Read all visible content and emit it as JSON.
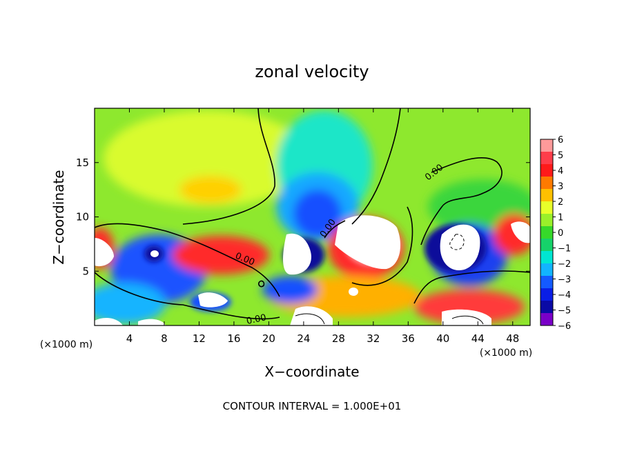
{
  "chart_data": {
    "type": "heatmap",
    "title": "zonal velocity",
    "xlabel": "X−coordinate",
    "ylabel": "Z−coordinate",
    "x_unit_label": "(×1000 m)",
    "y_unit_label": "(×1000 m)",
    "xlim": [
      0,
      50
    ],
    "ylim": [
      0,
      20
    ],
    "x_ticks": [
      4,
      8,
      12,
      16,
      20,
      24,
      28,
      32,
      36,
      40,
      44,
      48
    ],
    "y_ticks": [
      5,
      10,
      15
    ],
    "contour_label": "0.00",
    "footer": "CONTOUR INTERVAL = 1.000E+01",
    "colorbar": {
      "ticks": [
        "6",
        "5",
        "4",
        "3",
        "2",
        "1",
        "0",
        "−1",
        "−2",
        "−3",
        "−4",
        "−5",
        "−6"
      ],
      "levels": [
        6,
        5,
        4,
        3,
        2,
        1,
        0,
        -1,
        -2,
        -3,
        -4,
        -5,
        -6
      ]
    },
    "colors": [
      "#ff9a9a",
      "#ff3d4a",
      "#ff1a1a",
      "#ff7a00",
      "#ffc000",
      "#e8ff2a",
      "#9af02a",
      "#36d92a",
      "#16d26a",
      "#00e6d2",
      "#12b4ff",
      "#145aff",
      "#0a1ee6",
      "#0a0aa5",
      "#7a00c8"
    ]
  }
}
